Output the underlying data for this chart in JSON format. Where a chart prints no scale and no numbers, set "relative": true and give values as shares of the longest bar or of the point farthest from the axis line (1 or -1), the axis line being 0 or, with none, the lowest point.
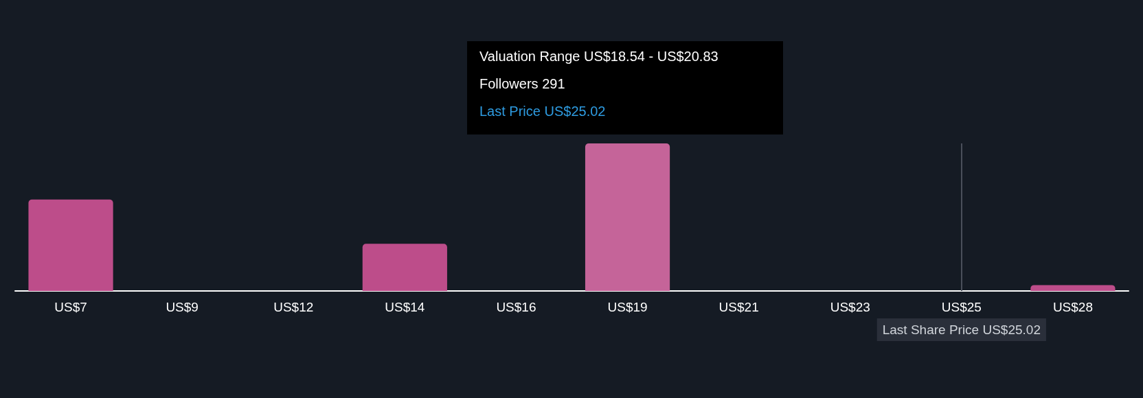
{
  "chart_data": {
    "type": "bar",
    "categories": [
      "US$7",
      "US$9",
      "US$12",
      "US$14",
      "US$16",
      "US$19",
      "US$21",
      "US$23",
      "US$25",
      "US$28"
    ],
    "values": [
      0.62,
      0,
      0,
      0.32,
      0,
      1,
      0,
      0,
      0,
      0.04
    ],
    "colors": [
      "#bd4d8a",
      "#bd4d8a",
      "#bd4d8a",
      "#bd4d8a",
      "#bd4d8a",
      "#c56499",
      "#bd4d8a",
      "#bd4d8a",
      "#bd4d8a",
      "#bd4d8a"
    ],
    "relative": true,
    "grid": false,
    "ref_lines": [
      {
        "axis": "x",
        "value": "US$25",
        "label": "Last Share Price US$25.02",
        "color": "#4a4f5a"
      }
    ],
    "annotations": [
      "Valuation Range US$18.54 - US$20.83",
      "Followers 291",
      "Last Price US$25.02"
    ]
  }
}
